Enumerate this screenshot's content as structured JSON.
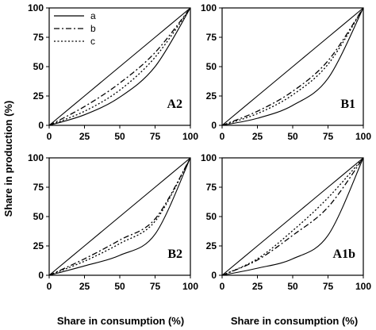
{
  "chart_data": {
    "type": "line",
    "xlabel": "Share in consumption (%)",
    "ylabel": "Share in production (%)",
    "xlim": [
      0,
      100
    ],
    "ylim": [
      0,
      100
    ],
    "xticks": [
      "0",
      "25",
      "50",
      "75",
      "100"
    ],
    "yticks": [
      "0",
      "25",
      "50",
      "75",
      "100"
    ],
    "grid": false,
    "legend": {
      "placement": "top-left",
      "entries": [
        {
          "name": "a",
          "style": "solid"
        },
        {
          "name": "b",
          "style": "dash-dot"
        },
        {
          "name": "c",
          "style": "dotted"
        }
      ]
    },
    "panels": [
      {
        "label": "A2",
        "x": [
          0,
          25,
          50,
          75,
          100
        ],
        "series": [
          {
            "name": "a",
            "values": [
              0,
              25,
              50,
              75,
              100
            ]
          },
          {
            "name": "b",
            "values": [
              0,
              16,
              36,
              62,
              100
            ]
          },
          {
            "name": "c",
            "values": [
              0,
              12,
              30,
              58,
              100
            ]
          },
          {
            "name": "",
            "values": [
              0,
              9,
              24,
              50,
              100
            ]
          }
        ]
      },
      {
        "label": "B1",
        "x": [
          0,
          25,
          50,
          75,
          100
        ],
        "series": [
          {
            "name": "a",
            "values": [
              0,
              25,
              50,
              75,
              100
            ]
          },
          {
            "name": "b",
            "values": [
              0,
              12,
              29,
              55,
              100
            ]
          },
          {
            "name": "c",
            "values": [
              0,
              10,
              26,
              52,
              100
            ]
          },
          {
            "name": "",
            "values": [
              0,
              6,
              17,
              40,
              100
            ]
          }
        ]
      },
      {
        "label": "B2",
        "x": [
          0,
          25,
          50,
          75,
          100
        ],
        "series": [
          {
            "name": "a",
            "values": [
              0,
              25,
              50,
              75,
              100
            ]
          },
          {
            "name": "b",
            "values": [
              0,
              14,
              30,
              48,
              100
            ]
          },
          {
            "name": "c",
            "values": [
              0,
              12,
              27,
              46,
              100
            ]
          },
          {
            "name": "",
            "values": [
              0,
              8,
              17,
              35,
              100
            ]
          }
        ]
      },
      {
        "label": "A1b",
        "x": [
          0,
          25,
          50,
          75,
          100
        ],
        "series": [
          {
            "name": "a",
            "values": [
              0,
              25,
              50,
              75,
              100
            ]
          },
          {
            "name": "b",
            "values": [
              0,
              13,
              34,
              58,
              100
            ]
          },
          {
            "name": "c",
            "values": [
              0,
              14,
              38,
              66,
              100
            ]
          },
          {
            "name": "",
            "values": [
              0,
              6,
              14,
              34,
              100
            ]
          }
        ]
      }
    ]
  }
}
